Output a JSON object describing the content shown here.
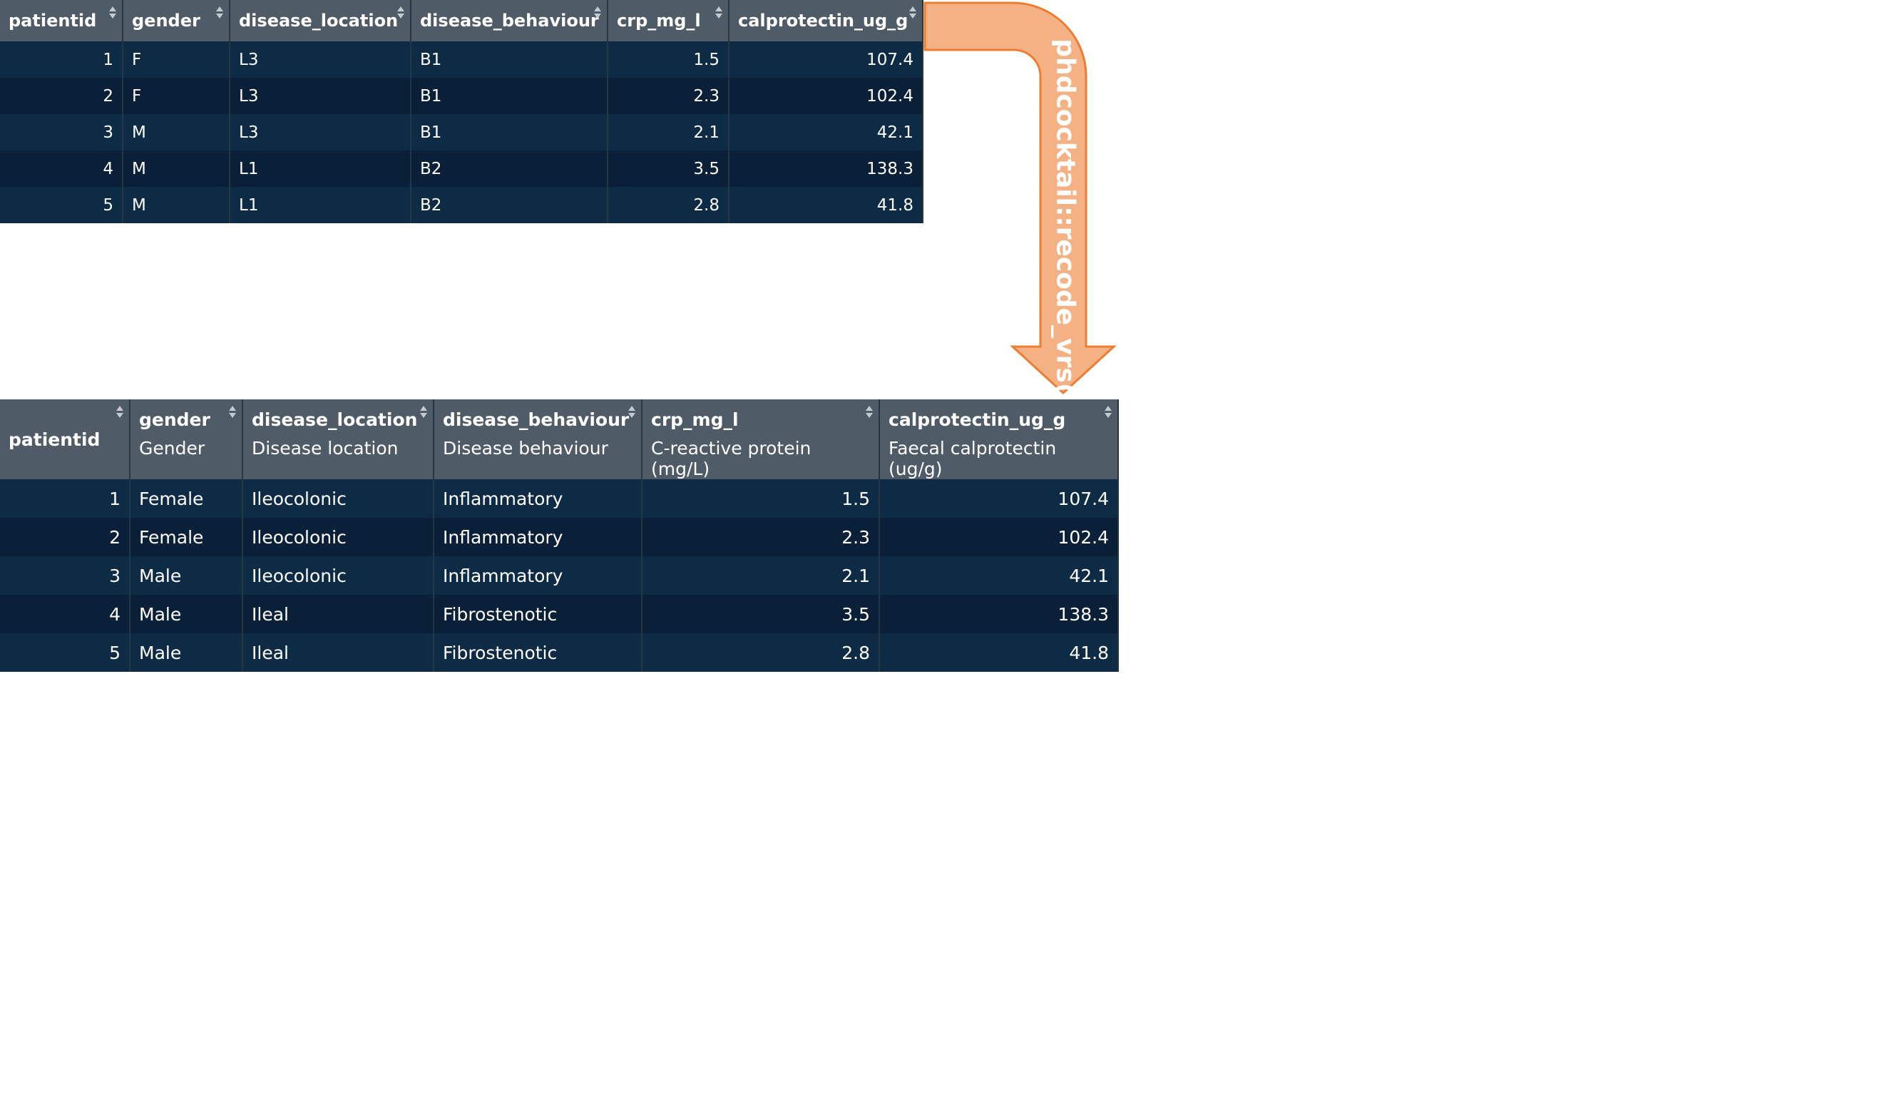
{
  "table_before": {
    "columns": [
      "patientid",
      "gender",
      "disease_location",
      "disease_behaviour",
      "crp_mg_l",
      "calprotectin_ug_g"
    ],
    "rows": [
      [
        "1",
        "F",
        "L3",
        "B1",
        "1.5",
        "107.4"
      ],
      [
        "2",
        "F",
        "L3",
        "B1",
        "2.3",
        "102.4"
      ],
      [
        "3",
        "M",
        "L3",
        "B1",
        "2.1",
        "42.1"
      ],
      [
        "4",
        "M",
        "L1",
        "B2",
        "3.5",
        "138.3"
      ],
      [
        "5",
        "M",
        "L1",
        "B2",
        "2.8",
        "41.8"
      ]
    ]
  },
  "arrow": {
    "label": "phdcocktail::recode_vrs()",
    "fill_color": "#f4b183",
    "stroke_color": "#ed7d31"
  },
  "table_after": {
    "columns": [
      {
        "name": "patientid",
        "label": ""
      },
      {
        "name": "gender",
        "label": "Gender"
      },
      {
        "name": "disease_location",
        "label": "Disease location"
      },
      {
        "name": "disease_behaviour",
        "label": "Disease behaviour"
      },
      {
        "name": "crp_mg_l",
        "label": "C-reactive protein (mg/L)"
      },
      {
        "name": "calprotectin_ug_g",
        "label": "Faecal calprotectin (ug/g)"
      }
    ],
    "rows": [
      [
        "1",
        "Female",
        "Ileocolonic",
        "Inflammatory",
        "1.5",
        "107.4"
      ],
      [
        "2",
        "Female",
        "Ileocolonic",
        "Inflammatory",
        "2.3",
        "102.4"
      ],
      [
        "3",
        "Male",
        "Ileocolonic",
        "Inflammatory",
        "2.1",
        "42.1"
      ],
      [
        "4",
        "Male",
        "Ileal",
        "Fibrostenotic",
        "3.5",
        "138.3"
      ],
      [
        "5",
        "Male",
        "Ileal",
        "Fibrostenotic",
        "2.8",
        "41.8"
      ]
    ]
  },
  "colors": {
    "header_bg": "#4f5b66",
    "row_bg_odd": "#0e2b46",
    "row_bg_even": "#0a1f38",
    "text": "#ffffff"
  }
}
